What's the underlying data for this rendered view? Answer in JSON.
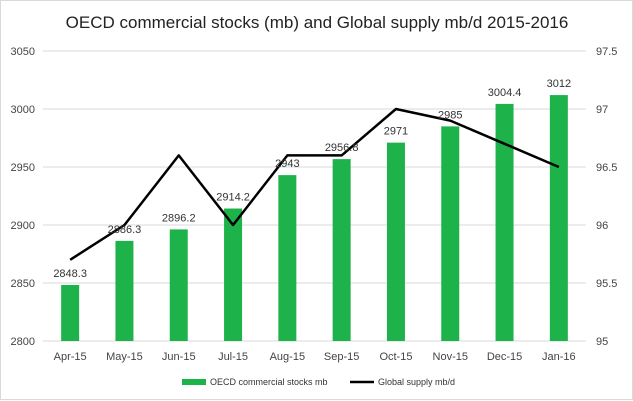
{
  "chart_data": {
    "type": "bar",
    "title": "OECD commercial stocks (mb) and Global supply mb/d 2015-2016",
    "categories": [
      "Apr-15",
      "May-15",
      "Jun-15",
      "Jul-15",
      "Aug-15",
      "Sep-15",
      "Oct-15",
      "Nov-15",
      "Dec-15",
      "Jan-16"
    ],
    "series": [
      {
        "name": "OECD commercial stocks mb",
        "type": "bar",
        "axis": "left",
        "color": "#1db34a",
        "values": [
          2848.3,
          2886.3,
          2896.2,
          2914.2,
          2943,
          2956.8,
          2971,
          2985,
          3004.4,
          3012
        ],
        "labels": [
          "2848.3",
          "2886.3",
          "2896.2",
          "2914.2",
          "2943",
          "2956.8",
          "2971",
          "2985",
          "3004.4",
          "3012"
        ]
      },
      {
        "name": "Global supply mb/d",
        "type": "line",
        "axis": "right",
        "color": "#000000",
        "values": [
          95.7,
          96.0,
          96.6,
          96.0,
          96.6,
          96.6,
          97.0,
          96.9,
          96.7,
          96.5
        ]
      }
    ],
    "y_left": {
      "ylim": [
        2800,
        3050
      ],
      "ticks": [
        "2800",
        "2850",
        "2900",
        "2950",
        "3000",
        "3050"
      ]
    },
    "y_right": {
      "ylim": [
        95,
        97.5
      ],
      "ticks": [
        "95",
        "95.5",
        "96",
        "96.5",
        "97",
        "97.5"
      ]
    },
    "grid": true,
    "legend_position": "bottom"
  }
}
